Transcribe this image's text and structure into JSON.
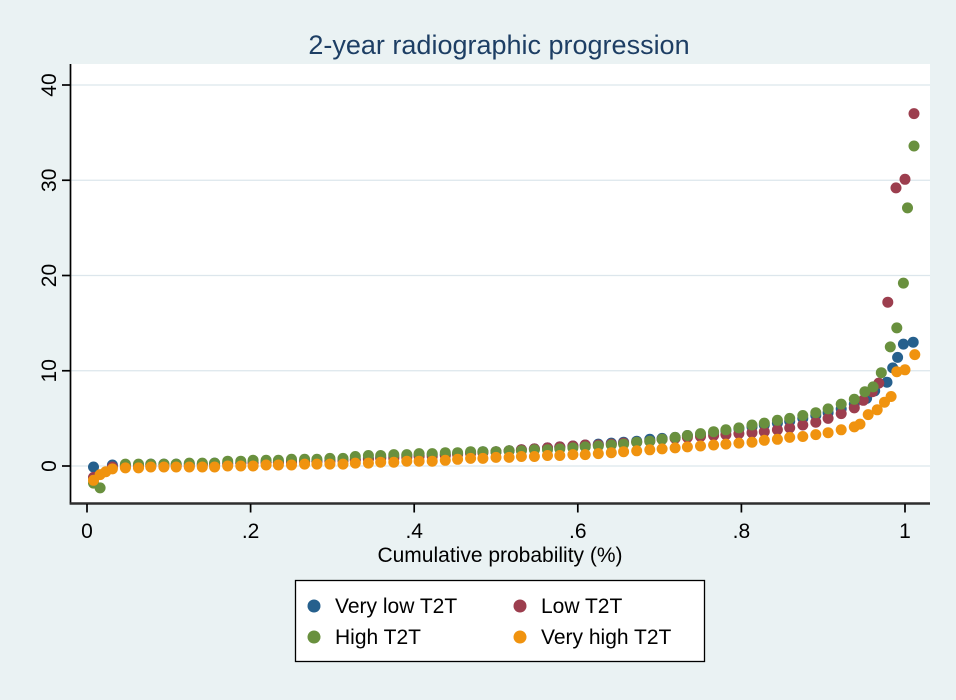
{
  "figure": {
    "title": "2-year radiographic progression",
    "background_color": "#eaf2f3",
    "plot_background_color": "#ffffff",
    "grid_color": "#dce6ec",
    "axis_color": "#000000",
    "title_color": "#1d3e64"
  },
  "chart_data": {
    "type": "scatter",
    "title": "2-year radiographic progression",
    "xlabel": "Cumulative probability (%)",
    "ylabel": "",
    "x_ticks": [
      "0",
      ".2",
      ".4",
      ".6",
      ".8",
      "1"
    ],
    "x_tick_values": [
      0,
      0.2,
      0.4,
      0.6,
      0.8,
      1
    ],
    "y_ticks": [
      "0",
      "10",
      "20",
      "30",
      "40"
    ],
    "y_tick_values": [
      0,
      10,
      20,
      30,
      40
    ],
    "xlim": [
      -0.02,
      1.03
    ],
    "ylim": [
      -3.9,
      42.2
    ],
    "grid": "horizontal",
    "legend_position": "bottom",
    "marker": "filled-circle",
    "series": [
      {
        "name": "Very low T2T",
        "color": "#26608d",
        "points": [
          [
            0.008,
            -0.1
          ],
          [
            0.031,
            0.1
          ],
          [
            0.047,
            0.1
          ],
          [
            0.063,
            0.1
          ],
          [
            0.078,
            0.2
          ],
          [
            0.094,
            0.2
          ],
          [
            0.109,
            0.2
          ],
          [
            0.125,
            0.2
          ],
          [
            0.141,
            0.2
          ],
          [
            0.156,
            0.3
          ],
          [
            0.172,
            0.3
          ],
          [
            0.188,
            0.3
          ],
          [
            0.203,
            0.4
          ],
          [
            0.219,
            0.4
          ],
          [
            0.234,
            0.4
          ],
          [
            0.25,
            0.5
          ],
          [
            0.266,
            0.5
          ],
          [
            0.281,
            0.5
          ],
          [
            0.297,
            0.6
          ],
          [
            0.313,
            0.6
          ],
          [
            0.328,
            0.7
          ],
          [
            0.344,
            0.8
          ],
          [
            0.359,
            0.9
          ],
          [
            0.375,
            1.0
          ],
          [
            0.391,
            1.1
          ],
          [
            0.406,
            1.1
          ],
          [
            0.422,
            1.2
          ],
          [
            0.438,
            1.2
          ],
          [
            0.453,
            1.3
          ],
          [
            0.469,
            1.4
          ],
          [
            0.484,
            1.5
          ],
          [
            0.5,
            1.5
          ],
          [
            0.516,
            1.6
          ],
          [
            0.531,
            1.7
          ],
          [
            0.547,
            1.8
          ],
          [
            0.563,
            1.9
          ],
          [
            0.578,
            2.0
          ],
          [
            0.594,
            2.1
          ],
          [
            0.609,
            2.2
          ],
          [
            0.625,
            2.3
          ],
          [
            0.641,
            2.4
          ],
          [
            0.656,
            2.5
          ],
          [
            0.672,
            2.6
          ],
          [
            0.688,
            2.8
          ],
          [
            0.703,
            2.9
          ],
          [
            0.719,
            3.0
          ],
          [
            0.734,
            3.2
          ],
          [
            0.75,
            3.3
          ],
          [
            0.766,
            3.5
          ],
          [
            0.781,
            3.7
          ],
          [
            0.797,
            3.9
          ],
          [
            0.813,
            4.1
          ],
          [
            0.828,
            4.3
          ],
          [
            0.844,
            4.5
          ],
          [
            0.859,
            4.7
          ],
          [
            0.875,
            5.0
          ],
          [
            0.891,
            5.3
          ],
          [
            0.906,
            5.6
          ],
          [
            0.922,
            6.0
          ],
          [
            0.938,
            6.5
          ],
          [
            0.953,
            7.1
          ],
          [
            0.963,
            7.9
          ],
          [
            0.978,
            8.8
          ],
          [
            0.985,
            10.3
          ],
          [
            0.991,
            11.4
          ],
          [
            0.998,
            12.8
          ],
          [
            1.01,
            13.0
          ]
        ]
      },
      {
        "name": "Low T2T",
        "color": "#9c3e4e",
        "points": [
          [
            0.008,
            -1.2
          ],
          [
            0.031,
            -0.1
          ],
          [
            0.047,
            -0.1
          ],
          [
            0.063,
            -0.1
          ],
          [
            0.078,
            0.0
          ],
          [
            0.094,
            0.0
          ],
          [
            0.109,
            0.0
          ],
          [
            0.125,
            0.0
          ],
          [
            0.141,
            0.1
          ],
          [
            0.156,
            0.1
          ],
          [
            0.172,
            0.2
          ],
          [
            0.188,
            0.3
          ],
          [
            0.203,
            0.3
          ],
          [
            0.219,
            0.4
          ],
          [
            0.234,
            0.4
          ],
          [
            0.25,
            0.4
          ],
          [
            0.266,
            0.5
          ],
          [
            0.281,
            0.5
          ],
          [
            0.297,
            0.5
          ],
          [
            0.313,
            0.6
          ],
          [
            0.328,
            0.6
          ],
          [
            0.344,
            0.7
          ],
          [
            0.359,
            0.8
          ],
          [
            0.375,
            0.8
          ],
          [
            0.391,
            0.9
          ],
          [
            0.406,
            1.0
          ],
          [
            0.422,
            1.0
          ],
          [
            0.438,
            1.1
          ],
          [
            0.453,
            1.2
          ],
          [
            0.469,
            1.3
          ],
          [
            0.484,
            1.4
          ],
          [
            0.5,
            1.5
          ],
          [
            0.516,
            1.6
          ],
          [
            0.531,
            1.7
          ],
          [
            0.547,
            1.8
          ],
          [
            0.563,
            1.9
          ],
          [
            0.578,
            2.0
          ],
          [
            0.594,
            2.1
          ],
          [
            0.609,
            2.2
          ],
          [
            0.625,
            2.2
          ],
          [
            0.641,
            2.3
          ],
          [
            0.656,
            2.4
          ],
          [
            0.672,
            2.5
          ],
          [
            0.688,
            2.6
          ],
          [
            0.703,
            2.8
          ],
          [
            0.719,
            2.9
          ],
          [
            0.734,
            3.0
          ],
          [
            0.75,
            3.1
          ],
          [
            0.766,
            3.2
          ],
          [
            0.781,
            3.3
          ],
          [
            0.797,
            3.4
          ],
          [
            0.813,
            3.5
          ],
          [
            0.828,
            3.6
          ],
          [
            0.844,
            3.8
          ],
          [
            0.859,
            4.0
          ],
          [
            0.875,
            4.3
          ],
          [
            0.891,
            4.6
          ],
          [
            0.906,
            5.0
          ],
          [
            0.922,
            5.5
          ],
          [
            0.938,
            6.1
          ],
          [
            0.949,
            6.9
          ],
          [
            0.96,
            7.8
          ],
          [
            0.968,
            8.7
          ],
          [
            0.979,
            17.2
          ],
          [
            0.989,
            29.2
          ],
          [
            1.0,
            30.1
          ],
          [
            1.011,
            37.0
          ]
        ]
      },
      {
        "name": "High T2T",
        "color": "#69903e",
        "points": [
          [
            0.008,
            -1.8
          ],
          [
            0.016,
            -2.3
          ],
          [
            0.047,
            0.2
          ],
          [
            0.063,
            0.2
          ],
          [
            0.078,
            0.2
          ],
          [
            0.094,
            0.2
          ],
          [
            0.109,
            0.2
          ],
          [
            0.125,
            0.3
          ],
          [
            0.141,
            0.3
          ],
          [
            0.156,
            0.3
          ],
          [
            0.172,
            0.5
          ],
          [
            0.188,
            0.5
          ],
          [
            0.203,
            0.6
          ],
          [
            0.219,
            0.6
          ],
          [
            0.234,
            0.6
          ],
          [
            0.25,
            0.7
          ],
          [
            0.266,
            0.7
          ],
          [
            0.281,
            0.7
          ],
          [
            0.297,
            0.8
          ],
          [
            0.313,
            0.8
          ],
          [
            0.328,
            1.0
          ],
          [
            0.344,
            1.1
          ],
          [
            0.359,
            1.1
          ],
          [
            0.375,
            1.2
          ],
          [
            0.391,
            1.2
          ],
          [
            0.406,
            1.3
          ],
          [
            0.422,
            1.3
          ],
          [
            0.438,
            1.4
          ],
          [
            0.453,
            1.4
          ],
          [
            0.469,
            1.5
          ],
          [
            0.484,
            1.5
          ],
          [
            0.5,
            1.5
          ],
          [
            0.516,
            1.6
          ],
          [
            0.531,
            1.6
          ],
          [
            0.547,
            1.7
          ],
          [
            0.563,
            1.7
          ],
          [
            0.578,
            1.8
          ],
          [
            0.594,
            1.9
          ],
          [
            0.609,
            2.0
          ],
          [
            0.625,
            2.1
          ],
          [
            0.641,
            2.2
          ],
          [
            0.656,
            2.3
          ],
          [
            0.672,
            2.5
          ],
          [
            0.688,
            2.6
          ],
          [
            0.703,
            2.8
          ],
          [
            0.719,
            3.0
          ],
          [
            0.734,
            3.2
          ],
          [
            0.75,
            3.4
          ],
          [
            0.766,
            3.6
          ],
          [
            0.781,
            3.8
          ],
          [
            0.797,
            4.0
          ],
          [
            0.813,
            4.3
          ],
          [
            0.828,
            4.5
          ],
          [
            0.844,
            4.8
          ],
          [
            0.859,
            5.0
          ],
          [
            0.875,
            5.3
          ],
          [
            0.891,
            5.6
          ],
          [
            0.906,
            6.0
          ],
          [
            0.922,
            6.5
          ],
          [
            0.938,
            7.0
          ],
          [
            0.951,
            7.8
          ],
          [
            0.961,
            8.3
          ],
          [
            0.971,
            9.8
          ],
          [
            0.982,
            12.5
          ],
          [
            0.99,
            14.5
          ],
          [
            0.998,
            19.2
          ],
          [
            1.003,
            27.1
          ],
          [
            1.011,
            33.6
          ]
        ]
      },
      {
        "name": "Very high T2T",
        "color": "#f0930f",
        "points": [
          [
            0.008,
            -1.5
          ],
          [
            0.016,
            -0.9
          ],
          [
            0.023,
            -0.6
          ],
          [
            0.031,
            -0.3
          ],
          [
            0.047,
            -0.2
          ],
          [
            0.063,
            -0.2
          ],
          [
            0.078,
            -0.1
          ],
          [
            0.094,
            -0.1
          ],
          [
            0.109,
            -0.1
          ],
          [
            0.125,
            -0.1
          ],
          [
            0.141,
            -0.1
          ],
          [
            0.156,
            -0.1
          ],
          [
            0.172,
            0.0
          ],
          [
            0.188,
            0.0
          ],
          [
            0.203,
            0.0
          ],
          [
            0.219,
            0.1
          ],
          [
            0.234,
            0.1
          ],
          [
            0.25,
            0.1
          ],
          [
            0.266,
            0.2
          ],
          [
            0.281,
            0.2
          ],
          [
            0.297,
            0.2
          ],
          [
            0.313,
            0.2
          ],
          [
            0.328,
            0.3
          ],
          [
            0.344,
            0.3
          ],
          [
            0.359,
            0.4
          ],
          [
            0.375,
            0.4
          ],
          [
            0.391,
            0.5
          ],
          [
            0.406,
            0.5
          ],
          [
            0.422,
            0.5
          ],
          [
            0.438,
            0.6
          ],
          [
            0.453,
            0.7
          ],
          [
            0.469,
            0.8
          ],
          [
            0.484,
            0.8
          ],
          [
            0.5,
            0.9
          ],
          [
            0.516,
            0.9
          ],
          [
            0.531,
            1.0
          ],
          [
            0.547,
            1.0
          ],
          [
            0.563,
            1.1
          ],
          [
            0.578,
            1.1
          ],
          [
            0.594,
            1.2
          ],
          [
            0.609,
            1.2
          ],
          [
            0.625,
            1.3
          ],
          [
            0.641,
            1.4
          ],
          [
            0.656,
            1.5
          ],
          [
            0.672,
            1.6
          ],
          [
            0.688,
            1.7
          ],
          [
            0.703,
            1.8
          ],
          [
            0.719,
            1.9
          ],
          [
            0.734,
            2.0
          ],
          [
            0.75,
            2.1
          ],
          [
            0.766,
            2.2
          ],
          [
            0.781,
            2.3
          ],
          [
            0.797,
            2.4
          ],
          [
            0.813,
            2.5
          ],
          [
            0.828,
            2.7
          ],
          [
            0.844,
            2.8
          ],
          [
            0.859,
            3.0
          ],
          [
            0.875,
            3.1
          ],
          [
            0.891,
            3.3
          ],
          [
            0.906,
            3.5
          ],
          [
            0.922,
            3.8
          ],
          [
            0.938,
            4.1
          ],
          [
            0.945,
            4.4
          ],
          [
            0.955,
            5.4
          ],
          [
            0.966,
            5.9
          ],
          [
            0.975,
            6.7
          ],
          [
            0.983,
            7.3
          ],
          [
            0.99,
            9.9
          ],
          [
            1.0,
            10.1
          ],
          [
            1.012,
            11.7
          ]
        ]
      }
    ]
  },
  "legend": {
    "rows": [
      [
        "Very low T2T",
        "Low T2T"
      ],
      [
        "High T2T",
        "Very high T2T"
      ]
    ]
  }
}
